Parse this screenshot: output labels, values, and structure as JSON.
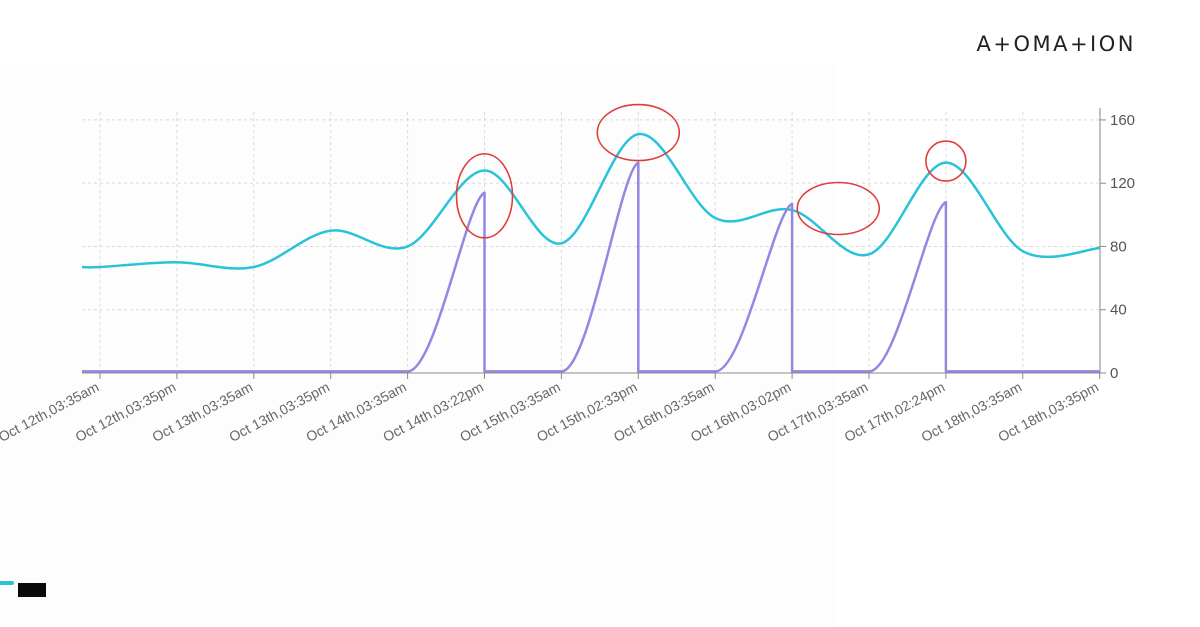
{
  "brand": {
    "logo_text": "A+OMA+ION"
  },
  "chart_data": {
    "type": "line",
    "title": "",
    "xlabel": "",
    "ylabel": "",
    "x": [
      "Oct 12th,03:35am",
      "Oct 12th,03:35pm",
      "Oct 13th,03:35am",
      "Oct 13th,03:35pm",
      "Oct 14th,03:35am",
      "Oct 14th,03:22pm",
      "Oct 15th,03:35am",
      "Oct 15th,02:33pm",
      "Oct 16th,03:35am",
      "Oct 16th,03:02pm",
      "Oct 17th,03:35am",
      "Oct 17th,02:24pm",
      "Oct 18th,03:35am",
      "Oct 18th,03:35pm"
    ],
    "x_tick_labels": [
      "Oct 12th,03:35am",
      "Oct 12th,03:35pm",
      "Oct 13th,03:35am",
      "Oct 13th,03:35pm",
      "Oct 14th,03:35am",
      "Oct 14th,03:22pm",
      "Oct 15th,03:35am",
      "Oct 15th,02:33pm",
      "Oct 16th,03:35am",
      "Oct 16th,03:02pm",
      "Oct 17th,03:35am",
      "Oct 17th,02:24pm",
      "Oct 18th,03:35am",
      "Oct 18th,03:35pm"
    ],
    "y_ticks": [
      "0",
      "40",
      "80",
      "120",
      "160"
    ],
    "ylim": [
      0,
      165
    ],
    "y_axis_side": "right",
    "grid": true,
    "legend": "none",
    "series": [
      {
        "color": "#29c3d9",
        "values": [
          67,
          70,
          67,
          90,
          80,
          128,
          82,
          151,
          98,
          103,
          75,
          133,
          77,
          79
        ]
      },
      {
        "color": "#9188e0",
        "values": [
          1,
          1,
          1,
          1,
          1,
          114,
          1,
          133,
          1,
          107,
          1,
          108,
          1,
          1
        ]
      }
    ],
    "annotation_color": "#e03c3c"
  }
}
